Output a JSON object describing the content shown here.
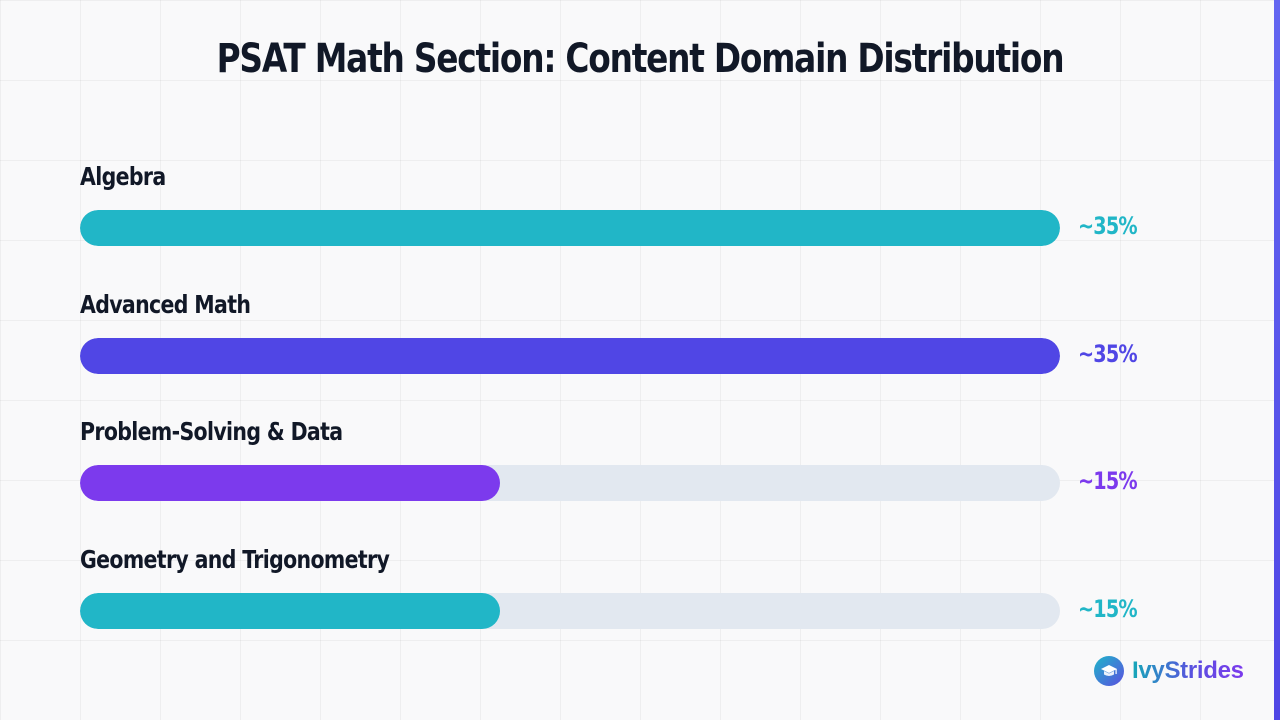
{
  "title": "PSAT Math Section: Content Domain Distribution",
  "chart_data": {
    "type": "bar",
    "orientation": "horizontal",
    "title": "PSAT Math Section: Content Domain Distribution",
    "categories": [
      "Algebra",
      "Advanced Math",
      "Problem-Solving & Data",
      "Geometry and Trigonometry"
    ],
    "values": [
      35,
      35,
      15,
      15
    ],
    "value_labels": [
      "~35%",
      "~35%",
      "~15%",
      "~15%"
    ],
    "unit": "%",
    "xlim": [
      0,
      35
    ],
    "colors": [
      "#21b6c7",
      "#5046e5",
      "#7c3aed",
      "#21b6c7"
    ],
    "track_color": "#e2e8f0",
    "grid": false,
    "legend": "none"
  },
  "brand": {
    "name": "IvyStrides",
    "icon": "graduation-cap-icon"
  }
}
